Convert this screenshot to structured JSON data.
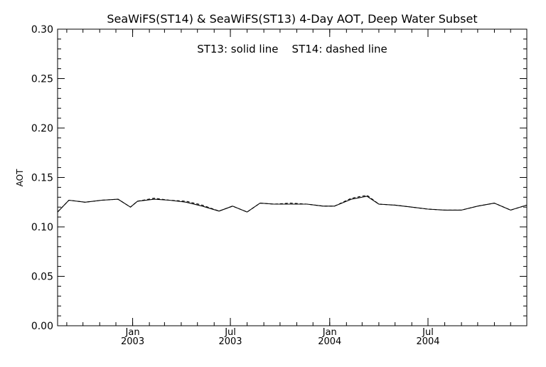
{
  "chart_data": {
    "type": "line",
    "title": "SeaWiFS(ST14) & SeaWiFS(ST13) 4-Day AOT, Deep Water Subset",
    "annotation": "ST13: solid line    ST14: dashed line",
    "xlabel": "",
    "ylabel": "AOT",
    "xlim": [
      "2002-08-15",
      "2004-12-31"
    ],
    "ylim": [
      0.0,
      0.3
    ],
    "yticks": [
      0.0,
      0.05,
      0.1,
      0.15,
      0.2,
      0.25,
      0.3
    ],
    "ytick_labels": [
      "0.00",
      "0.05",
      "0.10",
      "0.15",
      "0.20",
      "0.25",
      "0.30"
    ],
    "xticks": [
      {
        "date": "2003-01-01",
        "label_top": "Jan",
        "label_bottom": "2003"
      },
      {
        "date": "2003-07-01",
        "label_top": "Jul",
        "label_bottom": "2003"
      },
      {
        "date": "2004-01-01",
        "label_top": "Jan",
        "label_bottom": "2004"
      },
      {
        "date": "2004-07-01",
        "label_top": "Jul",
        "label_bottom": "2004"
      }
    ],
    "minor_ticks": "monthly",
    "grid": false,
    "line_color": "#000000",
    "series": [
      {
        "name": "ST13",
        "style": "solid",
        "x": [
          "2002-08-15",
          "2002-09-05",
          "2002-10-05",
          "2002-11-05",
          "2002-12-05",
          "2002-12-28",
          "2003-01-10",
          "2003-02-10",
          "2003-03-10",
          "2003-04-10",
          "2003-05-10",
          "2003-06-10",
          "2003-07-05",
          "2003-08-01",
          "2003-08-25",
          "2003-09-20",
          "2003-10-20",
          "2003-11-20",
          "2003-12-20",
          "2004-01-10",
          "2004-02-10",
          "2004-03-10",
          "2004-04-01",
          "2004-05-01",
          "2004-06-01",
          "2004-07-01",
          "2004-08-01",
          "2004-09-01",
          "2004-10-01",
          "2004-11-01",
          "2004-12-01",
          "2004-12-31"
        ],
        "y": [
          0.115,
          0.127,
          0.125,
          0.127,
          0.128,
          0.12,
          0.126,
          0.128,
          0.127,
          0.125,
          0.121,
          0.116,
          0.121,
          0.115,
          0.124,
          0.123,
          0.123,
          0.123,
          0.121,
          0.121,
          0.128,
          0.131,
          0.123,
          0.122,
          0.12,
          0.118,
          0.117,
          0.117,
          0.121,
          0.124,
          0.117,
          0.122
        ]
      },
      {
        "name": "ST14",
        "style": "dashed",
        "x": [
          "2002-08-15",
          "2002-09-05",
          "2002-10-05",
          "2002-11-05",
          "2002-12-05",
          "2002-12-28",
          "2003-01-10",
          "2003-02-10",
          "2003-03-10",
          "2003-04-10",
          "2003-05-10",
          "2003-06-10",
          "2003-07-05",
          "2003-08-01",
          "2003-08-25",
          "2003-09-20",
          "2003-10-20",
          "2003-11-20",
          "2003-12-20",
          "2004-01-10",
          "2004-02-10",
          "2004-03-10",
          "2004-04-01",
          "2004-05-01",
          "2004-06-01",
          "2004-07-01",
          "2004-08-01",
          "2004-09-01",
          "2004-10-01",
          "2004-11-01",
          "2004-12-01",
          "2004-12-31"
        ],
        "y": [
          0.115,
          0.127,
          0.125,
          0.127,
          0.128,
          0.12,
          0.126,
          0.129,
          0.127,
          0.126,
          0.122,
          0.116,
          0.121,
          0.115,
          0.124,
          0.123,
          0.124,
          0.123,
          0.121,
          0.121,
          0.129,
          0.132,
          0.123,
          0.122,
          0.12,
          0.118,
          0.117,
          0.117,
          0.121,
          0.124,
          0.117,
          0.122
        ]
      }
    ]
  }
}
